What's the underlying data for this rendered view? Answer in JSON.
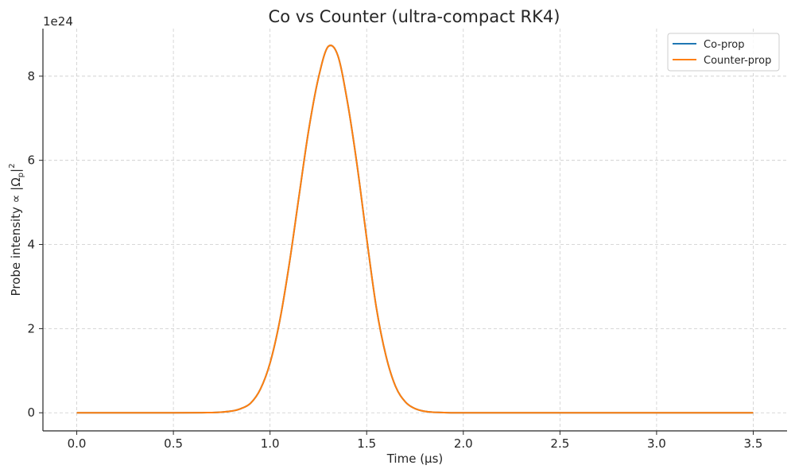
{
  "chart_data": {
    "type": "line",
    "title": "Co vs Counter (ultra-compact RK4)",
    "xlabel": "Time (μs)",
    "ylabel": "Probe intensity  ∝ |Ω_p|²",
    "ylabel_parts": {
      "main": "Probe intensity  ∝ |Ω",
      "sub": "p",
      "tail": "|",
      "sup": "2"
    },
    "y_offset_text": "1e24",
    "xlim": [
      -0.175,
      3.675
    ],
    "ylim": [
      -0.43,
      9.13
    ],
    "x_ticks": [
      0.0,
      0.5,
      1.0,
      1.5,
      2.0,
      2.5,
      3.0,
      3.5
    ],
    "x_tick_labels": [
      "0.0",
      "0.5",
      "1.0",
      "1.5",
      "2.0",
      "2.5",
      "3.0",
      "3.5"
    ],
    "y_ticks": [
      0,
      2,
      4,
      6,
      8
    ],
    "y_tick_labels": [
      "0",
      "2",
      "4",
      "6",
      "8"
    ],
    "grid": true,
    "legend_position": "top-right",
    "series": [
      {
        "name": "Co-prop",
        "color": "#1f77b4",
        "x": [
          0.0,
          0.5,
          0.7,
          0.8,
          0.85,
          0.9,
          0.95,
          1.0,
          1.05,
          1.1,
          1.15,
          1.2,
          1.25,
          1.3,
          1.35,
          1.4,
          1.45,
          1.5,
          1.55,
          1.6,
          1.65,
          1.7,
          1.75,
          1.8,
          1.85,
          1.9,
          2.0,
          2.5,
          3.0,
          3.5
        ],
        "values": [
          0,
          0,
          0.004,
          0.04,
          0.1,
          0.23,
          0.56,
          1.18,
          2.18,
          3.55,
          5.15,
          6.72,
          7.95,
          8.7,
          8.5,
          7.4,
          5.9,
          4.15,
          2.5,
          1.35,
          0.62,
          0.26,
          0.1,
          0.035,
          0.012,
          0.004,
          0.001,
          0,
          0,
          0
        ]
      },
      {
        "name": "Counter-prop",
        "color": "#ff7f0e",
        "x": [
          0.0,
          0.5,
          0.7,
          0.8,
          0.85,
          0.9,
          0.95,
          1.0,
          1.05,
          1.1,
          1.15,
          1.2,
          1.25,
          1.3,
          1.35,
          1.4,
          1.45,
          1.5,
          1.55,
          1.6,
          1.65,
          1.7,
          1.75,
          1.8,
          1.85,
          1.9,
          2.0,
          2.5,
          3.0,
          3.5
        ],
        "values": [
          0,
          0,
          0.004,
          0.04,
          0.1,
          0.23,
          0.56,
          1.18,
          2.18,
          3.55,
          5.15,
          6.72,
          7.95,
          8.7,
          8.5,
          7.4,
          5.9,
          4.15,
          2.5,
          1.35,
          0.62,
          0.26,
          0.1,
          0.035,
          0.012,
          0.004,
          0.001,
          0,
          0,
          0
        ]
      }
    ]
  }
}
